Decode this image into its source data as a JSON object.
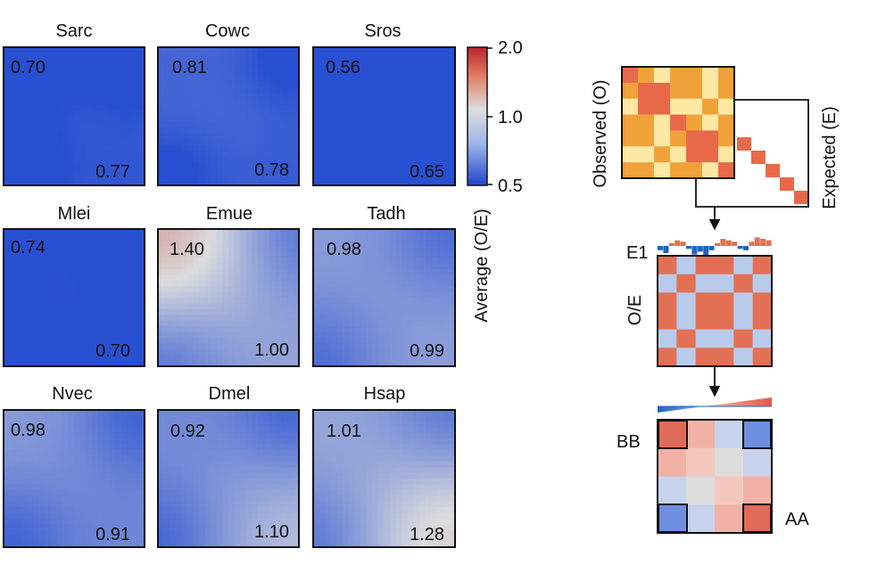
{
  "saddle_panels": [
    {
      "species": "Sarc",
      "bb": "0.70",
      "aa": "0.77",
      "bb_strength": 0.7,
      "aa_strength": 0.77
    },
    {
      "species": "Cowc",
      "bb": "0.81",
      "aa": "0.78",
      "bb_strength": 0.81,
      "aa_strength": 0.78
    },
    {
      "species": "Sros",
      "bb": "0.56",
      "aa": "0.65",
      "bb_strength": 0.56,
      "aa_strength": 0.65
    },
    {
      "species": "Mlei",
      "bb": "0.74",
      "aa": "0.70",
      "bb_strength": 0.74,
      "aa_strength": 0.7
    },
    {
      "species": "Emue",
      "bb": "1.40",
      "aa": "1.00",
      "bb_strength": 1.4,
      "aa_strength": 1.0
    },
    {
      "species": "Tadh",
      "bb": "0.98",
      "aa": "0.99",
      "bb_strength": 0.98,
      "aa_strength": 0.99
    },
    {
      "species": "Nvec",
      "bb": "0.98",
      "aa": "0.91",
      "bb_strength": 0.98,
      "aa_strength": 0.91
    },
    {
      "species": "Dmel",
      "bb": "0.92",
      "aa": "1.10",
      "bb_strength": 0.92,
      "aa_strength": 1.1
    },
    {
      "species": "Hsap",
      "bb": "1.01",
      "aa": "1.28",
      "bb_strength": 1.01,
      "aa_strength": 1.28
    }
  ],
  "colorbar": {
    "label": "Average (O/E)",
    "ticks": [
      "2.0",
      "1.0",
      "0.5"
    ],
    "high_color": "#c0392b",
    "mid_color": "#dcdcdc",
    "low_color": "#2b56d6"
  },
  "schematic": {
    "observed_label": "Observed (O)",
    "expected_label": "Expected (E)",
    "e1_label": "E1",
    "oe_label": "O/E",
    "bb_label": "BB",
    "aa_label": "AA",
    "observed_colors": {
      "high": "#f0a23a",
      "low": "#fde9a4",
      "diag": "#e8694a"
    },
    "oe_colors": {
      "a": "#e27055",
      "b": "#b9cbea"
    },
    "e1_colors": {
      "pos": "#e27055",
      "neg": "#1f64c0"
    }
  }
}
